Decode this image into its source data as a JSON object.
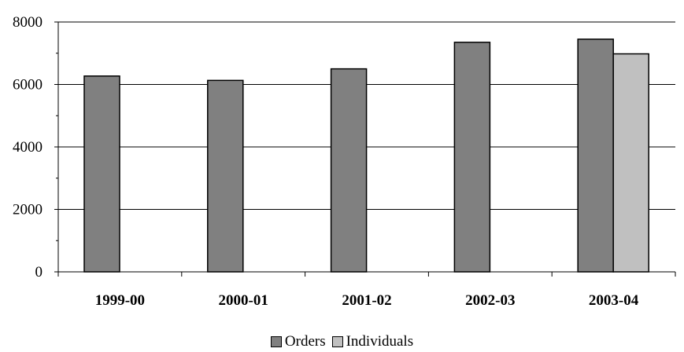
{
  "chart_data": {
    "type": "bar",
    "categories": [
      "1999-00",
      "2000-01",
      "2001-02",
      "2002-03",
      "2003-04"
    ],
    "series": [
      {
        "name": "Orders",
        "color": "#808080",
        "values": [
          6270,
          6130,
          6500,
          7350,
          7450
        ]
      },
      {
        "name": "Individuals",
        "color": "#c0c0c0",
        "values": [
          null,
          null,
          null,
          null,
          6980
        ]
      }
    ],
    "yticks": [
      0,
      2000,
      4000,
      6000,
      8000
    ],
    "ylim": [
      0,
      8000
    ],
    "grid": true,
    "legend_position": "bottom",
    "title": "",
    "xlabel": "",
    "ylabel": ""
  }
}
